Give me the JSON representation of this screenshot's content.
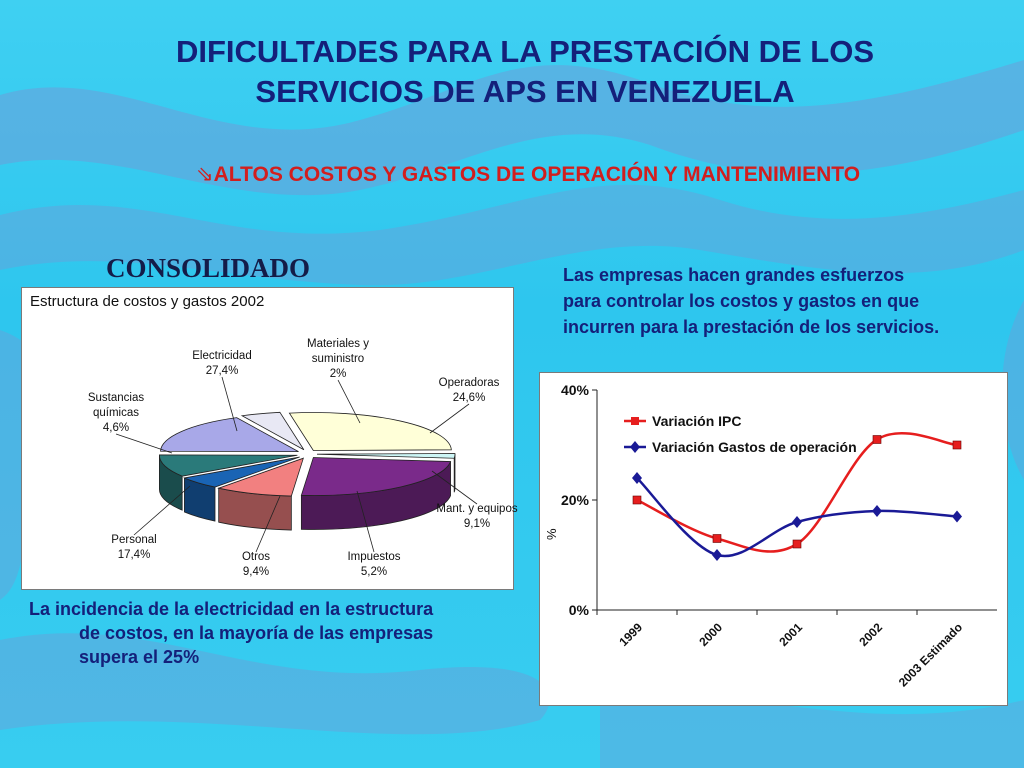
{
  "slide": {
    "title_line1": "DIFICULTADES PARA LA PRESTACIÓN DE LOS",
    "title_line2": "SERVICIOS DE APS EN VENEZUELA",
    "subtitle_icon": "arrow-bullet-icon",
    "subtitle": "ALTOS COSTOS Y GASTOS DE OPERACIÓN Y MANTENIMIENTO",
    "consolidado": "CONSOLIDADO",
    "left_note_line1": "La incidencia de la  electricidad en la estructura",
    "left_note_line2": "de costos, en  la mayoría de las empresas",
    "left_note_line3": "supera el 25%",
    "right_note": "Las empresas hacen grandes esfuerzos para controlar los costos y gastos en que incurren para la prestación de los servicios.",
    "background_colors": {
      "sky": "#33c9ef",
      "wave": "#6e9ed8"
    },
    "title_color": "#14207a",
    "subtitle_color": "#d21e1e"
  },
  "chart_data": [
    {
      "type": "pie",
      "title": "Estructura de costos y gastos 2002",
      "slices": [
        {
          "name": "Electricidad",
          "label_line1": "Electricidad",
          "label_line2": "",
          "value_label": "27,4%",
          "value": 27.4,
          "color": "#ffffd8"
        },
        {
          "name": "Materiales y suministro",
          "label_line1": "Materiales y",
          "label_line2": "suministro",
          "value_label": "2%",
          "value": 2.0,
          "color": "#cdf6f6"
        },
        {
          "name": "Operadoras",
          "label_line1": "Operadoras",
          "label_line2": "",
          "value_label": "24,6%",
          "value": 24.6,
          "color": "#7a2a8a"
        },
        {
          "name": "Mant. y equipos",
          "label_line1": "Mant. y equipos",
          "label_line2": "",
          "value_label": "9,1%",
          "value": 9.1,
          "color": "#f28080"
        },
        {
          "name": "Impuestos",
          "label_line1": "Impuestos",
          "label_line2": "",
          "value_label": "5,2%",
          "value": 5.2,
          "color": "#1a64b4"
        },
        {
          "name": "Otros",
          "label_line1": "Otros",
          "label_line2": "",
          "value_label": "9,4%",
          "value": 9.4,
          "color": "#2a7a7a"
        },
        {
          "name": "Personal",
          "label_line1": "Personal",
          "label_line2": "",
          "value_label": "17,4%",
          "value": 17.4,
          "color": "#a8a8e8"
        },
        {
          "name": "Sustancias químicas",
          "label_line1": "Sustancias",
          "label_line2": "químicas",
          "value_label": "4,6%",
          "value": 4.6,
          "color": "#e8e8f4"
        }
      ],
      "style": "3d-exploded"
    },
    {
      "type": "line",
      "categories": [
        "1999",
        "2000",
        "2001",
        "2002",
        "2003 Estimado"
      ],
      "ylabel": "%",
      "ylim": [
        0,
        40
      ],
      "yticks": [
        "0%",
        "20%",
        "40%"
      ],
      "legend_position": "top-left",
      "series": [
        {
          "name": "Variación IPC",
          "values": [
            20,
            13,
            12,
            31,
            30
          ],
          "color": "#e61e1e",
          "marker": "square"
        },
        {
          "name": "Variación Gastos de operación",
          "values": [
            24,
            10,
            16,
            18,
            17
          ],
          "color": "#1a1a96",
          "marker": "diamond"
        }
      ]
    }
  ]
}
